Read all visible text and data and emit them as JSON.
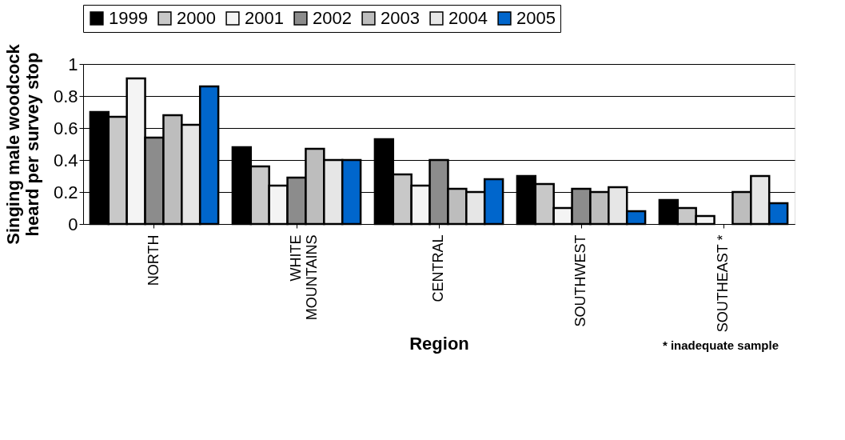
{
  "chart_data": {
    "type": "bar",
    "xlabel": "Region",
    "ylabel": "Singing male woodcock\nheard per survey stop",
    "categories": [
      "NORTH",
      "WHITE\nMOUNTAINS",
      "CENTRAL",
      "SOUTHWEST",
      "SOUTHEAST *"
    ],
    "series": [
      {
        "name": "1999",
        "color": "#000000",
        "values": [
          0.7,
          0.48,
          0.53,
          0.3,
          0.15
        ]
      },
      {
        "name": "2000",
        "color": "#c8c8c8",
        "values": [
          0.67,
          0.36,
          0.31,
          0.25,
          0.1
        ]
      },
      {
        "name": "2001",
        "color": "#f4f4f4",
        "values": [
          0.91,
          0.24,
          0.24,
          0.1,
          0.05
        ]
      },
      {
        "name": "2002",
        "color": "#8c8c8c",
        "values": [
          0.54,
          0.29,
          0.4,
          0.22,
          null
        ]
      },
      {
        "name": "2003",
        "color": "#bdbdbd",
        "values": [
          0.68,
          0.47,
          0.22,
          0.2,
          0.2
        ]
      },
      {
        "name": "2004",
        "color": "#e6e6e6",
        "values": [
          0.62,
          0.4,
          0.2,
          0.23,
          0.3
        ]
      },
      {
        "name": "2005",
        "color": "#0066cc",
        "values": [
          0.86,
          0.4,
          0.28,
          0.08,
          0.13
        ]
      }
    ],
    "ylim": [
      0,
      1
    ],
    "yticks": [
      0,
      0.2,
      0.4,
      0.6,
      0.8,
      1
    ],
    "grid": "y",
    "legend": "top",
    "annotations": [
      "* inadequate sample"
    ]
  }
}
